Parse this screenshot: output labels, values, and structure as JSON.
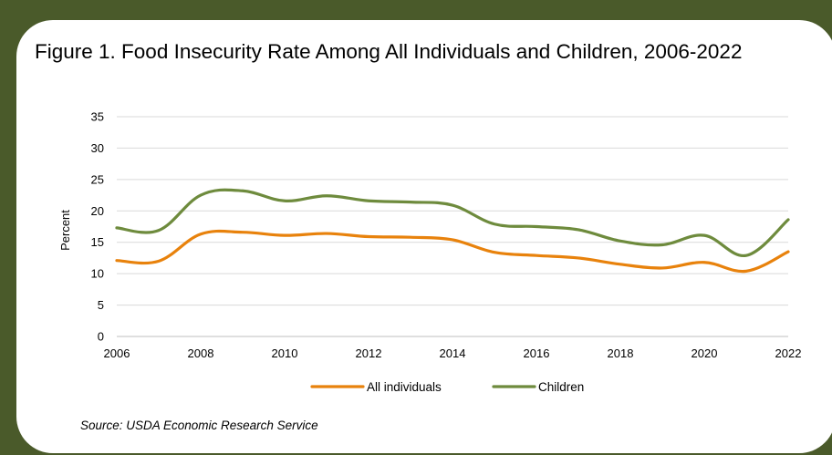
{
  "chart_data": {
    "type": "line",
    "title": "Figure 1. Food Insecurity Rate Among All Individuals and Children, 2006-2022",
    "xlabel": "",
    "ylabel": "Percent",
    "x": [
      2006,
      2007,
      2008,
      2009,
      2010,
      2011,
      2012,
      2013,
      2014,
      2015,
      2016,
      2017,
      2018,
      2019,
      2020,
      2021,
      2022
    ],
    "xticks": [
      "2006",
      "2008",
      "2010",
      "2012",
      "2014",
      "2016",
      "2018",
      "2020",
      "2022"
    ],
    "yticks": [
      "0",
      "5",
      "10",
      "15",
      "20",
      "25",
      "30",
      "35"
    ],
    "ylim": [
      0,
      35
    ],
    "grid": "horizontal",
    "legend": "bottom",
    "series": [
      {
        "name": "All individuals",
        "color": "#e8820c",
        "values": [
          12.1,
          12.0,
          16.3,
          16.6,
          16.1,
          16.4,
          15.9,
          15.8,
          15.4,
          13.4,
          12.9,
          12.5,
          11.5,
          10.9,
          11.8,
          10.4,
          13.5
        ]
      },
      {
        "name": "Children",
        "color": "#6e8b3d",
        "values": [
          17.3,
          16.9,
          22.5,
          23.2,
          21.6,
          22.4,
          21.6,
          21.4,
          20.9,
          17.9,
          17.5,
          17.0,
          15.2,
          14.6,
          16.1,
          12.9,
          18.6
        ]
      }
    ]
  },
  "source": "Source: USDA Economic Research Service"
}
